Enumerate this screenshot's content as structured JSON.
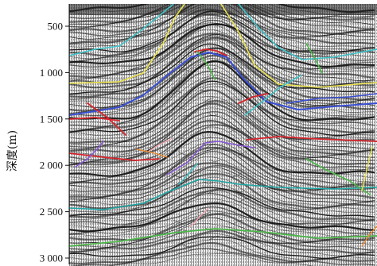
{
  "axis": {
    "title": "深度(m)",
    "ticks": [
      {
        "value": 500,
        "label": "500"
      },
      {
        "value": 1000,
        "label": "1 000"
      },
      {
        "value": 1500,
        "label": "1 500"
      },
      {
        "value": 2000,
        "label": "2 000"
      },
      {
        "value": 2500,
        "label": "2 500"
      },
      {
        "value": 3000,
        "label": "3 000"
      }
    ],
    "range": [
      300,
      3050
    ]
  },
  "colors": {
    "trace_dark": "#111111",
    "trace_light": "#f2f2f2",
    "horizon_cyan": "#3fc3c9",
    "horizon_yellow": "#e8e04a",
    "horizon_blue": "#3a4fd6",
    "horizon_red": "#d8242c",
    "horizon_teal": "#1ea7a5",
    "horizon_green": "#4db84a",
    "horizon_violet": "#8a5ad6",
    "horizon_pink": "#f0a6b0",
    "horizon_orange": "#f08a2a"
  }
}
